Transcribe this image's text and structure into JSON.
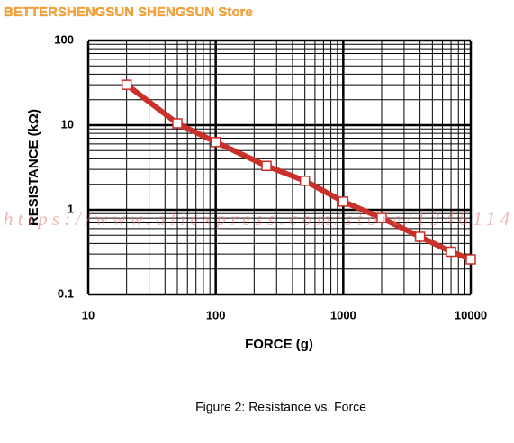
{
  "chart_data": {
    "type": "line",
    "title": "Figure 2: Resistance vs. Force",
    "x_label": "FORCE (g)",
    "y_label": "RESISTANCE (kΩ)",
    "annotations": [
      "BETTERSHENGSUN SHENGSUN Store",
      "https://www.aliexpress.com/store/1346114"
    ],
    "x": [
      20,
      50,
      100,
      250,
      500,
      1000,
      2000,
      4000,
      7000,
      10000
    ],
    "series": [
      {
        "name": "Resistance",
        "color": "#c9302a",
        "values": [
          30,
          10.5,
          6.3,
          3.3,
          2.2,
          1.25,
          0.8,
          0.48,
          0.32,
          0.26
        ]
      }
    ],
    "xlim": [
      10,
      10000
    ],
    "ylim": [
      0.1,
      100
    ],
    "xticks": [
      10,
      100,
      1000,
      10000
    ],
    "yticks": [
      0.1,
      1,
      10,
      100
    ],
    "log_x": true,
    "log_y": true,
    "grid": true
  }
}
